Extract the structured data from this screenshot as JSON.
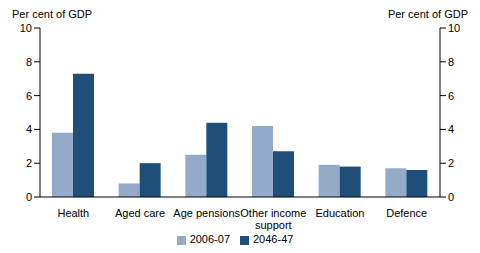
{
  "chart_data": {
    "type": "bar",
    "y_label": "Per cent of GDP",
    "y2_label": "Per cent of GDP",
    "categories": [
      "Health",
      "Aged care",
      "Age pensions",
      "Other income support",
      "Education",
      "Defence"
    ],
    "series": [
      {
        "name": "2006-07",
        "color": "#93abc9",
        "values": [
          3.8,
          0.8,
          2.5,
          4.2,
          1.9,
          1.7
        ]
      },
      {
        "name": "2046-47",
        "color": "#1f4e79",
        "values": [
          7.3,
          2.0,
          4.4,
          2.7,
          1.8,
          1.6
        ]
      }
    ],
    "ylim": [
      0,
      10
    ],
    "yticks": [
      0,
      2,
      4,
      6,
      8,
      10
    ],
    "y2lim": [
      0,
      10
    ],
    "y2ticks": [
      0,
      2,
      4,
      6,
      8,
      10
    ],
    "grid": false,
    "legend": "bottom"
  }
}
